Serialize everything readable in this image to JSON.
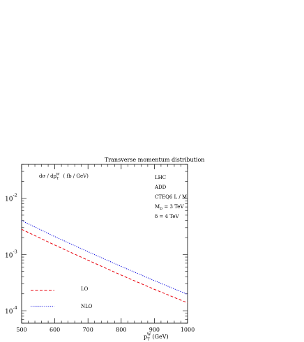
{
  "chart_data": {
    "type": "line",
    "title": "Transverse momentum distribution",
    "ylabel_main": "dσ / dp",
    "ylabel_sub": "T",
    "ylabel_sup": "W",
    "ylabel_units": "( fb / GeV)",
    "xlabel_main": "p",
    "xlabel_sub": "T",
    "xlabel_sup": "W",
    "xlabel_units": "(GeV)",
    "xlim": [
      500,
      1000
    ],
    "ylim": [
      6e-05,
      0.04
    ],
    "y_scale": "log",
    "x_ticks": [
      "500",
      "600",
      "700",
      "800",
      "900",
      "1000"
    ],
    "y_ticks": [
      {
        "base": "10",
        "exp": "-2",
        "value": 0.01
      },
      {
        "base": "10",
        "exp": "-3",
        "value": 0.001
      },
      {
        "base": "10",
        "exp": "-4",
        "value": 0.0001
      }
    ],
    "annotations": {
      "line1": "LHC",
      "line2": "ADD",
      "line3": "CTEQ6 L / M",
      "line4_main": "M",
      "line4_sub": "D",
      "line4_rest": " = 3 TeV",
      "line5": "δ = 4 TeV"
    },
    "legend_position": "bottom-left",
    "series": [
      {
        "name": "LO",
        "color": "#e8000b",
        "dash": "dashed",
        "x": [
          500,
          600,
          700,
          800,
          900,
          1000
        ],
        "y": [
          0.0028,
          0.00147,
          0.00079,
          0.00043,
          0.00024,
          0.000138
        ]
      },
      {
        "name": "NLO",
        "color": "#0000dd",
        "dash": "dotted",
        "x": [
          500,
          600,
          700,
          800,
          900,
          1000
        ],
        "y": [
          0.004,
          0.00208,
          0.00112,
          0.000613,
          0.000343,
          0.000195
        ]
      }
    ]
  }
}
